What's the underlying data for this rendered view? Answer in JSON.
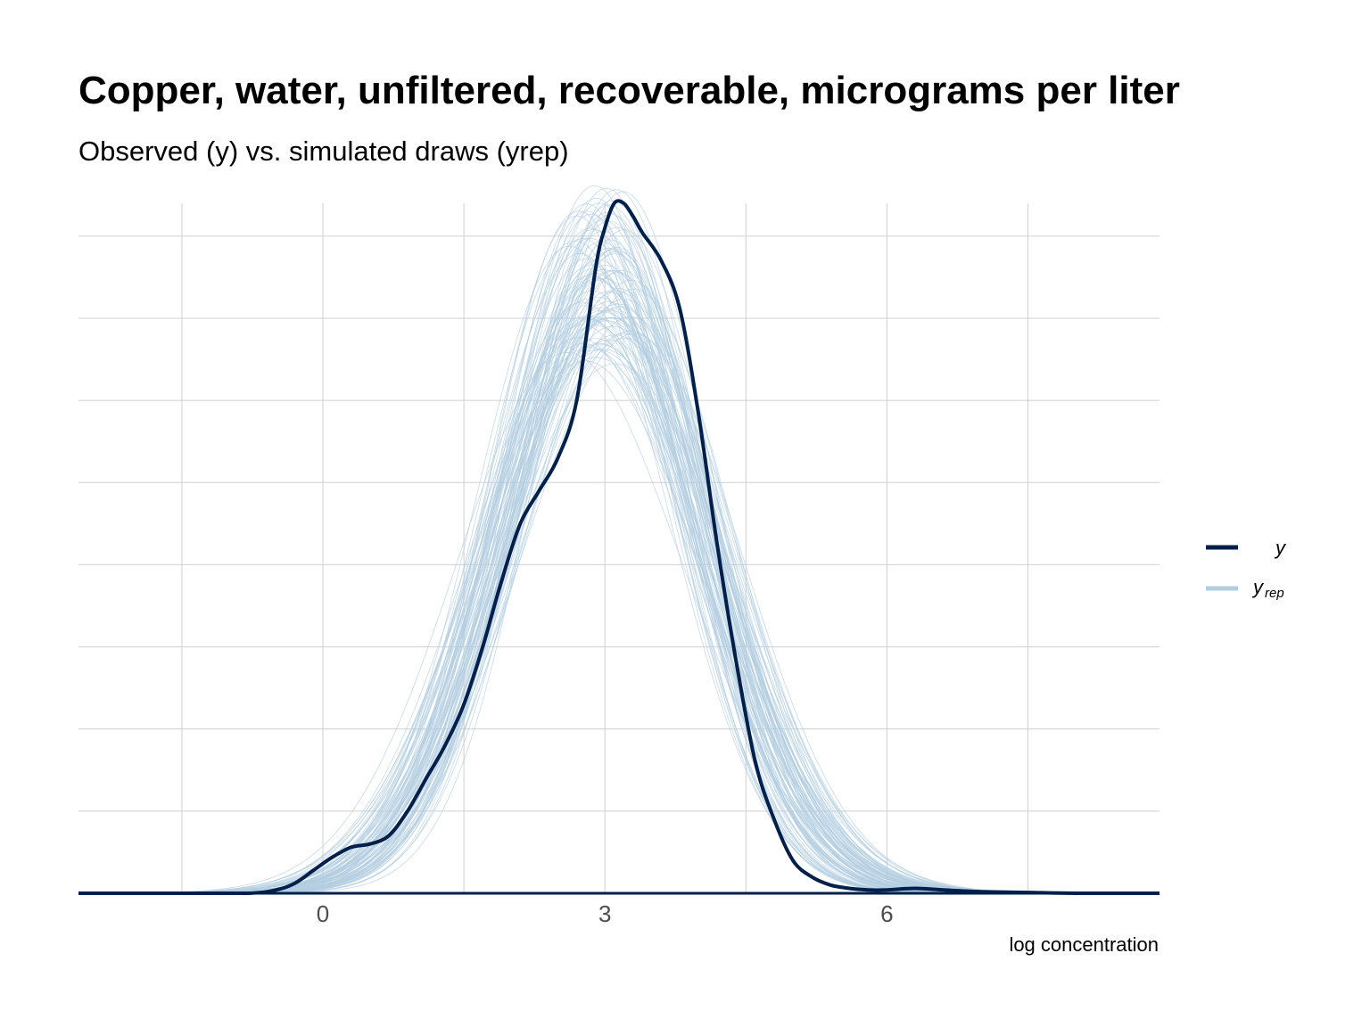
{
  "chart_data": {
    "type": "line",
    "title": "Copper, water, unfiltered, recoverable, micrograms per liter",
    "subtitle": "Observed (y) vs. simulated draws (yrep)",
    "xlabel": "log concentration",
    "ylabel": "",
    "xlim": [
      -2.6,
      8.9
    ],
    "ylim": [
      0,
      0.42
    ],
    "x_ticks": [
      0,
      3,
      6
    ],
    "x_tick_labels": [
      "0",
      "3",
      "6"
    ],
    "x_minor_grid": [
      -1.5,
      1.5,
      4.5,
      7.5
    ],
    "y_grid": [
      0.05,
      0.1,
      0.15,
      0.2,
      0.25,
      0.3,
      0.35,
      0.4
    ],
    "grid": true,
    "legend_position": "right",
    "legend": [
      {
        "label": "y",
        "subscript": "",
        "color": "#011f4b"
      },
      {
        "label": "y",
        "subscript": "rep",
        "color": "#b3cde0"
      }
    ],
    "series": [
      {
        "name": "y",
        "color": "#011f4b",
        "x": [
          -2.6,
          -1.5,
          -0.8,
          -0.5,
          -0.3,
          -0.1,
          0.1,
          0.3,
          0.5,
          0.7,
          0.9,
          1.1,
          1.3,
          1.5,
          1.7,
          1.9,
          2.1,
          2.3,
          2.5,
          2.7,
          2.9,
          3.0,
          3.1,
          3.2,
          3.3,
          3.4,
          3.6,
          3.8,
          4.0,
          4.2,
          4.4,
          4.6,
          4.8,
          5.0,
          5.2,
          5.4,
          5.6,
          5.8,
          6.0,
          6.3,
          6.6,
          7.0,
          7.5,
          8.0,
          8.9
        ],
        "y": [
          0.0,
          0.0,
          0.0,
          0.002,
          0.006,
          0.014,
          0.022,
          0.028,
          0.03,
          0.035,
          0.05,
          0.07,
          0.09,
          0.115,
          0.15,
          0.19,
          0.225,
          0.245,
          0.265,
          0.3,
          0.38,
          0.405,
          0.42,
          0.42,
          0.412,
          0.402,
          0.385,
          0.355,
          0.29,
          0.21,
          0.14,
          0.08,
          0.045,
          0.02,
          0.01,
          0.005,
          0.003,
          0.002,
          0.002,
          0.003,
          0.002,
          0.001,
          0.0005,
          0.0,
          0.0
        ]
      }
    ],
    "yrep": {
      "name": "y_rep",
      "color": "#b3cde0",
      "n_draws": 100,
      "approx_mean": 2.95,
      "approx_sd": 1.05,
      "peak_density_range": [
        0.26,
        0.37
      ]
    }
  }
}
